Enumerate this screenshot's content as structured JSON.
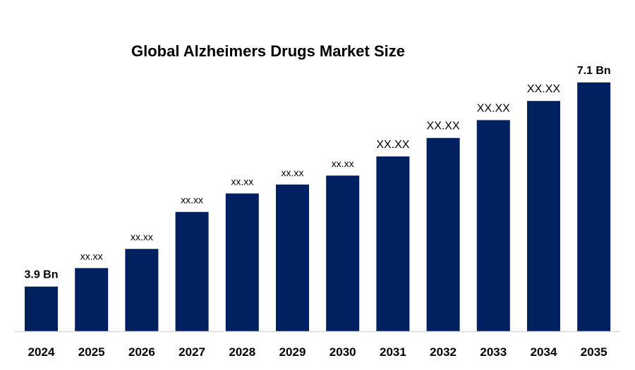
{
  "chart_data": {
    "type": "bar",
    "title": "Global Alzheimers Drugs Market Size",
    "xlabel": "",
    "ylabel": "",
    "categories": [
      "2024",
      "2025",
      "2026",
      "2027",
      "2028",
      "2029",
      "2030",
      "2031",
      "2032",
      "2033",
      "2034",
      "2035"
    ],
    "values": [
      3.9,
      4.19,
      4.49,
      5.07,
      5.36,
      5.5,
      5.64,
      5.94,
      6.23,
      6.51,
      6.81,
      7.1
    ],
    "data_labels": [
      "3.9 Bn",
      "xx.xx",
      "xx.xx",
      "xx.xx",
      "xx.xx",
      "xx.xx",
      "xx.xx",
      "XX.XX",
      "XX.XX",
      "XX.XX",
      "XX.XX",
      "7.1 Bn"
    ],
    "unit": "Bn",
    "ylim": [
      3.2,
      7.1
    ],
    "y_axis_visible": false,
    "grid": false,
    "legend": "none",
    "bar_color": "#002060",
    "baseline_color": "#d9d9d9"
  }
}
